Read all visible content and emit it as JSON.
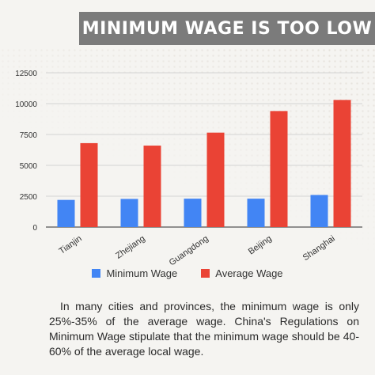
{
  "title": "MINIMUM WAGE IS TOO LOW",
  "description": "In many cities and provinces, the minimum wage is only 25%-35% of the average wage. China's Regulations on Minimum Wage stipulate that the minimum wage should be 40-60% of the average local wage.",
  "legend": {
    "minimum": "Minimum Wage",
    "average": "Average Wage"
  },
  "colors": {
    "minimum": "#4285f4",
    "average": "#ea4335"
  },
  "chart_data": {
    "type": "bar",
    "title": "",
    "xlabel": "",
    "ylabel": "",
    "categories": [
      "Tianjin",
      "Zhejiang",
      "Guangdong",
      "Beijing",
      "Shanghai"
    ],
    "series": [
      {
        "name": "Minimum Wage",
        "values": [
          2200,
          2280,
          2300,
          2300,
          2600
        ]
      },
      {
        "name": "Average Wage",
        "values": [
          6800,
          6600,
          7650,
          9400,
          10300
        ]
      }
    ],
    "ylim": [
      0,
      12500
    ],
    "yticks": [
      0,
      2500,
      5000,
      7500,
      10000,
      12500
    ],
    "ytick_labels": [
      "0",
      "2500",
      "5000",
      "7500",
      "10000",
      "12500"
    ],
    "grid": true,
    "legend_position": "bottom"
  }
}
